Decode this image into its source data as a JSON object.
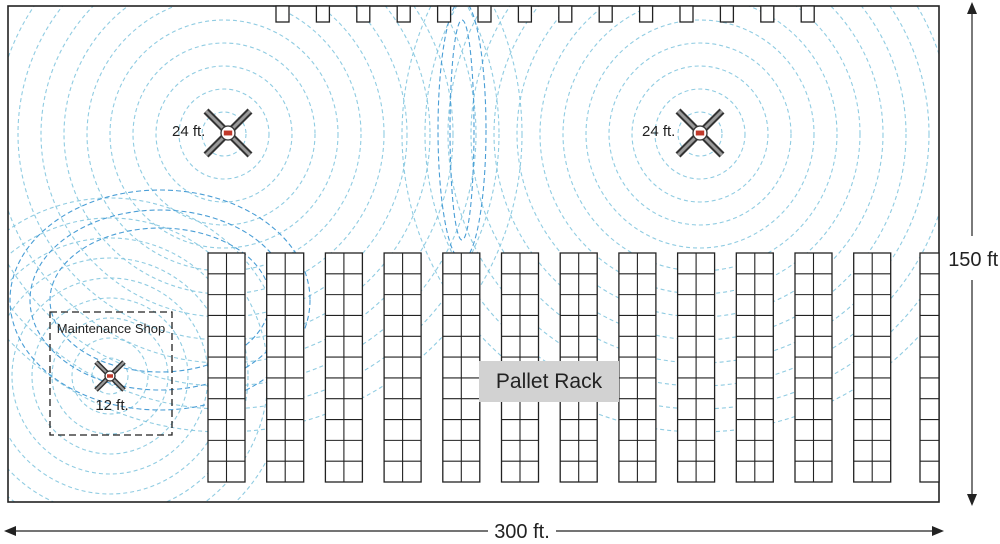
{
  "diagram": {
    "fans": [
      {
        "label": "24 ft."
      },
      {
        "label": "24 ft."
      },
      {
        "label": "12 ft."
      }
    ],
    "maintenance_shop": "Maintenance Shop",
    "pallet_rack": "Pallet Rack",
    "width": "300 ft.",
    "height": "150 ft."
  },
  "colors": {
    "airflow": "#7cc3dd",
    "airflow_dark": "#4a9ed6",
    "outline": "#222222",
    "rack_label_bg": "#d2d2d2"
  }
}
